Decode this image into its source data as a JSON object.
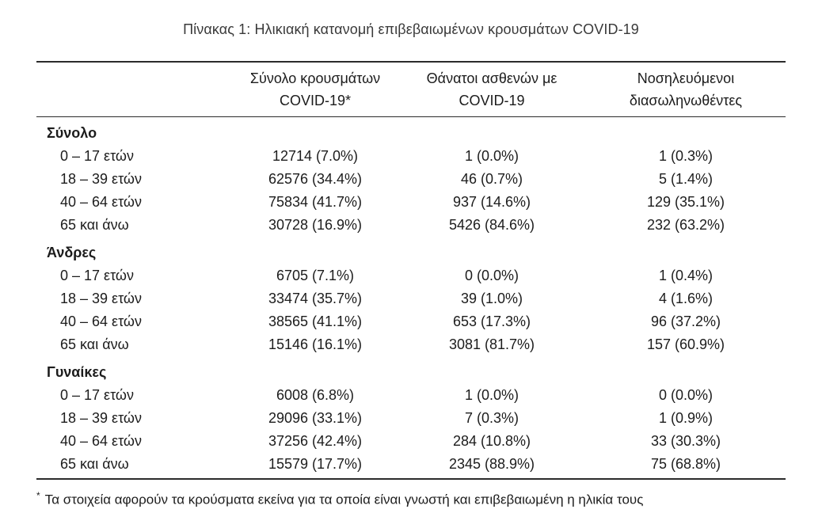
{
  "title": "Πίνακας 1: Ηλικιακή κατανομή επιβεβαιωμένων κρουσμάτων COVID-19",
  "palette": {
    "text": "#1c1c1c",
    "title_text": "#3a3a3a",
    "rule": "#2b2b2b",
    "background": "#ffffff"
  },
  "table": {
    "columns": [
      {
        "line1": "Σύνολο κρουσμάτων",
        "line2": "COVID-19*"
      },
      {
        "line1": "Θάνατοι ασθενών με",
        "line2": "COVID-19"
      },
      {
        "line1": "Νοσηλευόμενοι",
        "line2": "διασωληνωθέντες"
      }
    ],
    "sections": [
      {
        "label": "Σύνολο",
        "rows": [
          {
            "age": "0 – 17 ετών",
            "cases": "12714 (7.0%)",
            "deaths": "1 (0.0%)",
            "intubated": "1 (0.3%)"
          },
          {
            "age": "18 – 39 ετών",
            "cases": "62576 (34.4%)",
            "deaths": "46 (0.7%)",
            "intubated": "5 (1.4%)"
          },
          {
            "age": "40 – 64 ετών",
            "cases": "75834 (41.7%)",
            "deaths": "937 (14.6%)",
            "intubated": "129 (35.1%)"
          },
          {
            "age": "65 και άνω",
            "cases": "30728 (16.9%)",
            "deaths": "5426 (84.6%)",
            "intubated": "232 (63.2%)"
          }
        ]
      },
      {
        "label": "Άνδρες",
        "rows": [
          {
            "age": "0 – 17 ετών",
            "cases": "6705 (7.1%)",
            "deaths": "0 (0.0%)",
            "intubated": "1 (0.4%)"
          },
          {
            "age": "18 – 39 ετών",
            "cases": "33474 (35.7%)",
            "deaths": "39 (1.0%)",
            "intubated": "4 (1.6%)"
          },
          {
            "age": "40 – 64 ετών",
            "cases": "38565 (41.1%)",
            "deaths": "653 (17.3%)",
            "intubated": "96 (37.2%)"
          },
          {
            "age": "65 και άνω",
            "cases": "15146 (16.1%)",
            "deaths": "3081 (81.7%)",
            "intubated": "157 (60.9%)"
          }
        ]
      },
      {
        "label": "Γυναίκες",
        "rows": [
          {
            "age": "0 – 17 ετών",
            "cases": "6008 (6.8%)",
            "deaths": "1 (0.0%)",
            "intubated": "0 (0.0%)"
          },
          {
            "age": "18 – 39 ετών",
            "cases": "29096 (33.1%)",
            "deaths": "7 (0.3%)",
            "intubated": "1 (0.9%)"
          },
          {
            "age": "40 – 64 ετών",
            "cases": "37256 (42.4%)",
            "deaths": "284 (10.8%)",
            "intubated": "33 (30.3%)"
          },
          {
            "age": "65 και άνω",
            "cases": "15579 (17.7%)",
            "deaths": "2345 (88.9%)",
            "intubated": "75 (68.8%)"
          }
        ]
      }
    ]
  },
  "footnote": {
    "marker": "*",
    "text": "Τα στοιχεία αφορούν τα κρούσματα εκείνα για τα οποία είναι γνωστή και επιβεβαιωμένη η ηλικία τους"
  }
}
